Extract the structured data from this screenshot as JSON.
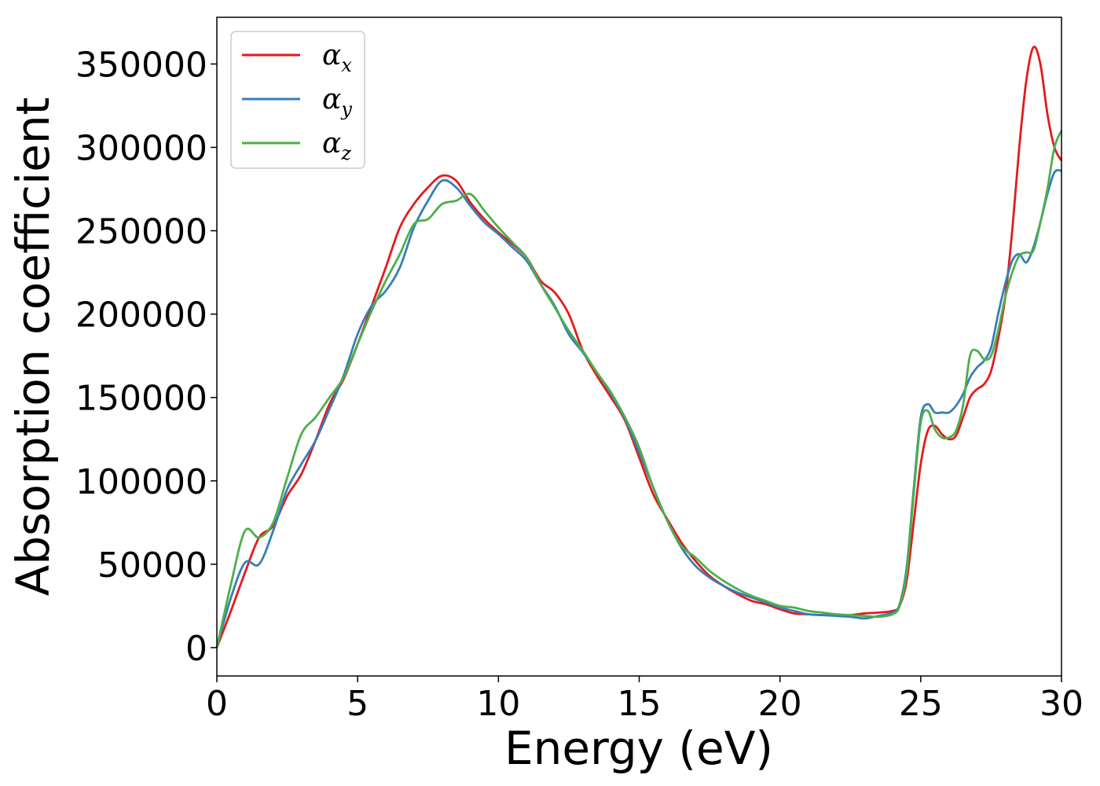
{
  "chart_data": {
    "type": "line",
    "title": "",
    "xlabel": "Energy (eV)",
    "ylabel": "Absorption coefficient",
    "xlim": [
      0,
      30
    ],
    "ylim": [
      -17000,
      378000
    ],
    "xticks": [
      0,
      5,
      10,
      15,
      20,
      25,
      30
    ],
    "yticks": [
      0,
      50000,
      100000,
      150000,
      200000,
      250000,
      300000,
      350000
    ],
    "grid": false,
    "legend": "top-left",
    "x": [
      0,
      0.5,
      1,
      1.5,
      2,
      2.5,
      3,
      3.5,
      4,
      4.5,
      5,
      5.5,
      6,
      6.5,
      7,
      7.5,
      8,
      8.5,
      9,
      9.5,
      10,
      10.5,
      11,
      11.5,
      12,
      12.5,
      13,
      13.5,
      14,
      14.5,
      15,
      15.5,
      16,
      16.5,
      17,
      17.5,
      18,
      18.5,
      19,
      19.5,
      20,
      20.5,
      21,
      21.5,
      22,
      22.5,
      23,
      23.5,
      24,
      24.25,
      24.5,
      24.75,
      25,
      25.25,
      25.5,
      25.75,
      26,
      26.25,
      26.5,
      26.75,
      27,
      27.25,
      27.5,
      27.75,
      28,
      28.25,
      28.5,
      28.75,
      29,
      29.25,
      29.5,
      29.75,
      30
    ],
    "series": [
      {
        "name": "α",
        "sub": "x",
        "color": "#e41a1c",
        "values": [
          0,
          22000,
          45000,
          66000,
          73000,
          91000,
          104000,
          124000,
          146000,
          161000,
          182000,
          205000,
          228000,
          252000,
          266000,
          276000,
          283000,
          280000,
          267000,
          257000,
          249000,
          242000,
          234000,
          220000,
          213000,
          200000,
          178000,
          163000,
          150000,
          136000,
          114000,
          92000,
          77000,
          63000,
          52000,
          43000,
          37000,
          32000,
          28000,
          26000,
          23000,
          20500,
          20000,
          19500,
          19500,
          19500,
          20500,
          21000,
          22000,
          25000,
          40000,
          75000,
          110000,
          130000,
          133000,
          128000,
          125000,
          127000,
          138000,
          150000,
          155000,
          158000,
          166000,
          185000,
          210000,
          250000,
          300000,
          340000,
          360000,
          350000,
          320000,
          300000,
          292000
        ]
      },
      {
        "name": "α",
        "sub": "y",
        "color": "#377eb8",
        "values": [
          0,
          30000,
          51000,
          50000,
          70000,
          95000,
          110000,
          124000,
          143000,
          163000,
          188000,
          205000,
          214000,
          228000,
          252000,
          268000,
          280000,
          276000,
          265000,
          255000,
          248000,
          240000,
          232000,
          218000,
          205000,
          188000,
          177000,
          165000,
          152000,
          137000,
          117000,
          96000,
          76000,
          60000,
          49000,
          42000,
          37000,
          33000,
          30000,
          27000,
          24000,
          22000,
          20000,
          19500,
          19000,
          18500,
          17500,
          19000,
          21000,
          26000,
          48000,
          95000,
          138000,
          146000,
          141000,
          141000,
          141000,
          145000,
          152000,
          162000,
          168000,
          172000,
          180000,
          200000,
          218000,
          232000,
          236000,
          231000,
          240000,
          255000,
          272000,
          285000,
          286000
        ]
      },
      {
        "name": "α",
        "sub": "z",
        "color": "#4daf4a",
        "values": [
          0,
          38000,
          70000,
          66000,
          75000,
          102000,
          128000,
          138000,
          150000,
          162000,
          182000,
          202000,
          220000,
          236000,
          254000,
          257000,
          266000,
          268000,
          272000,
          262000,
          252000,
          243000,
          234000,
          218000,
          204000,
          190000,
          178000,
          165000,
          153000,
          138000,
          120000,
          96000,
          76000,
          61000,
          54000,
          46000,
          40000,
          35000,
          31000,
          28000,
          25000,
          24000,
          22000,
          21000,
          20000,
          19500,
          19000,
          18500,
          20000,
          25000,
          45000,
          92000,
          135000,
          142000,
          131000,
          126000,
          126000,
          130000,
          145000,
          175000,
          178000,
          173000,
          175000,
          190000,
          210000,
          225000,
          235000,
          237000,
          238000,
          255000,
          275000,
          300000,
          310000
        ]
      }
    ]
  }
}
